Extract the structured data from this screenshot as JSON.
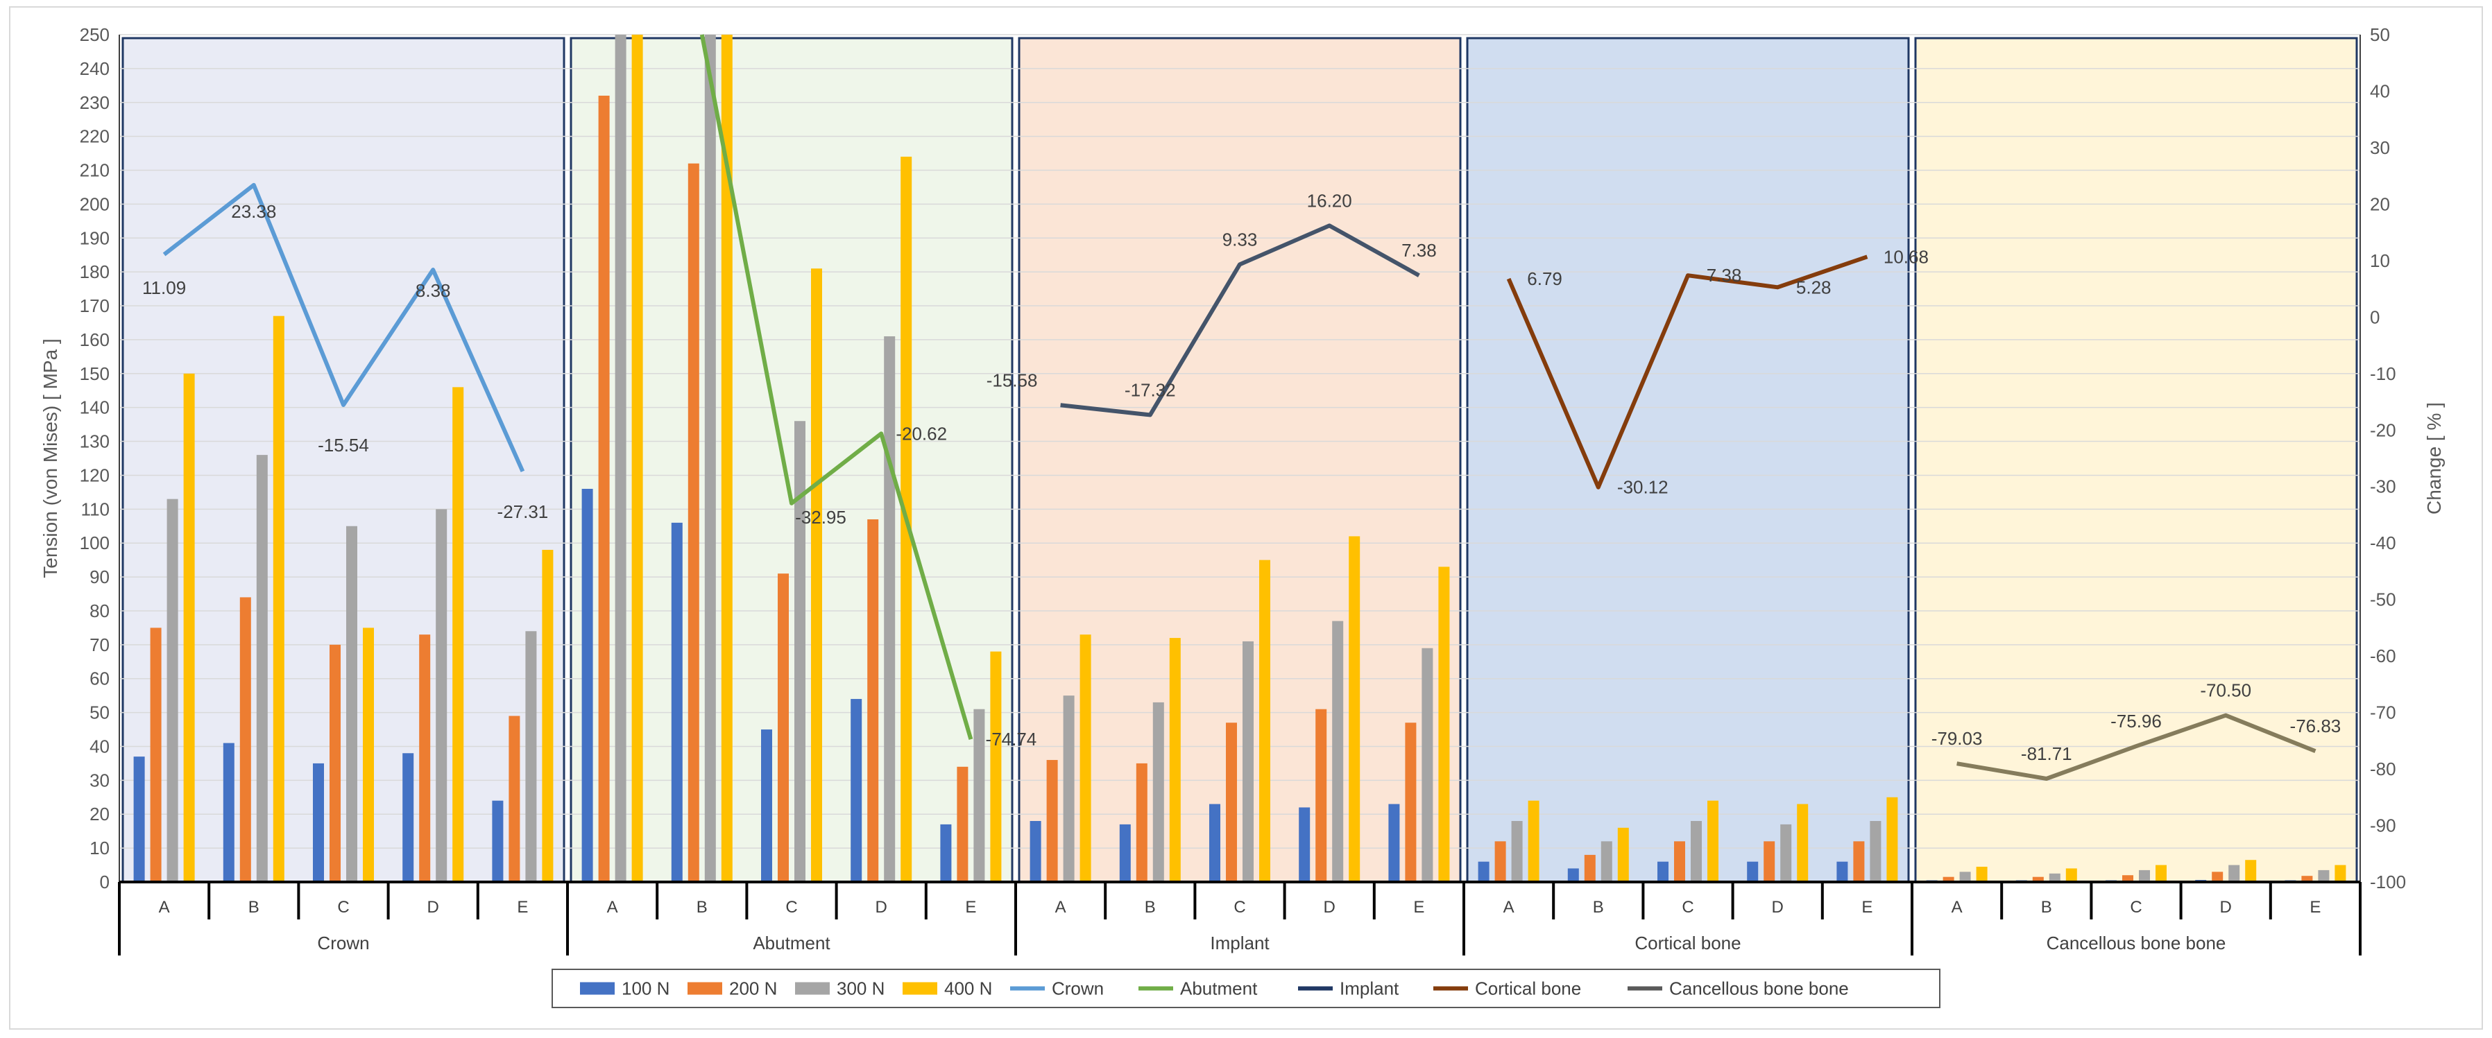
{
  "chart_data": {
    "type": "bar+line",
    "title": "",
    "ylabel": "Tension (von Mises) [ MPa ]",
    "y2label": "Change [ % ]",
    "ylim": [
      0,
      250
    ],
    "yticks": [
      0,
      10,
      20,
      30,
      40,
      50,
      60,
      70,
      80,
      90,
      100,
      110,
      120,
      130,
      140,
      150,
      160,
      170,
      180,
      190,
      200,
      210,
      220,
      230,
      240,
      250
    ],
    "y2lim": [
      -100,
      50
    ],
    "y2ticks": [
      -100,
      -90,
      -80,
      -70,
      -60,
      -50,
      -40,
      -30,
      -20,
      -10,
      0,
      10,
      20,
      30,
      40,
      50
    ],
    "colors": {
      "100N": "#4472C4",
      "200N": "#ED7D31",
      "300N": "#A5A5A5",
      "400N": "#FFC000",
      "Crown": "#5B9BD5",
      "Abutment": "#70AD47",
      "Implant": "#44546A",
      "Cortical bone": "#843C0C",
      "Cancellous bone bone": "#7F7F7F"
    },
    "groups": [
      {
        "name": "Crown",
        "background": "#E9EBF5",
        "categories": [
          "A",
          "B",
          "C",
          "D",
          "E"
        ],
        "bars": {
          "100 N": [
            37,
            41,
            35,
            38,
            24
          ],
          "200 N": [
            75,
            84,
            70,
            73,
            49
          ],
          "300 N": [
            113,
            126,
            105,
            110,
            74
          ],
          "400 N": [
            150,
            167,
            75,
            146,
            98
          ]
        },
        "change": [
          11.09,
          23.38,
          -15.54,
          8.38,
          -27.31
        ],
        "change_labels": [
          "11.09",
          "23.38",
          "-15.54",
          "8.38",
          "-27.31"
        ],
        "line_color": "#5B9BD5"
      },
      {
        "name": "Abutment",
        "background": "#EFF6EA",
        "categories": [
          "A",
          "B",
          "C",
          "D",
          "E"
        ],
        "bars": {
          "100 N": [
            116,
            106,
            45,
            54,
            17
          ],
          "200 N": [
            232,
            212,
            91,
            107,
            34
          ],
          "300 N": [
            250,
            250,
            136,
            161,
            51
          ],
          "400 N": [
            250,
            250,
            181,
            214,
            68
          ]
        },
        "change": [
          null,
          50,
          -32.95,
          -20.62,
          -74.74
        ],
        "change_labels": [
          null,
          null,
          "-32.95",
          "-20.62",
          "-74.74"
        ],
        "line_color": "#70AD47"
      },
      {
        "name": "Implant",
        "background": "#FBE5D6",
        "categories": [
          "A",
          "B",
          "C",
          "D",
          "E"
        ],
        "bars": {
          "100 N": [
            18,
            17,
            23,
            22,
            23
          ],
          "200 N": [
            36,
            35,
            47,
            51,
            47
          ],
          "300 N": [
            55,
            53,
            71,
            77,
            69
          ],
          "400 N": [
            73,
            72,
            95,
            102,
            93
          ]
        },
        "change": [
          -15.58,
          -17.32,
          9.33,
          16.2,
          7.38
        ],
        "change_labels": [
          "-15.58",
          "-17.32",
          "9.33",
          "16.20",
          "7.38"
        ],
        "line_color": "#44546A"
      },
      {
        "name": "Cortical bone",
        "background": "#D0DDF0",
        "categories": [
          "A",
          "B",
          "C",
          "D",
          "E"
        ],
        "bars": {
          "100 N": [
            6,
            4,
            6,
            6,
            6
          ],
          "200 N": [
            12,
            8,
            12,
            12,
            12
          ],
          "300 N": [
            18,
            12,
            18,
            17,
            18
          ],
          "400 N": [
            24,
            16,
            24,
            23,
            25
          ]
        },
        "change": [
          6.79,
          -30.12,
          7.38,
          5.28,
          10.68
        ],
        "change_labels": [
          "6.79",
          "-30.12",
          "7.38",
          "5.28",
          "10.68"
        ],
        "line_color": "#843C0C"
      },
      {
        "name": "Cancellous bone bone",
        "background": "#FFF5D9",
        "categories": [
          "A",
          "B",
          "C",
          "D",
          "E"
        ],
        "bars": {
          "100 N": [
            0.5,
            0.5,
            0.5,
            0.6,
            0.5
          ],
          "200 N": [
            1.5,
            1.5,
            2,
            3,
            1.8
          ],
          "300 N": [
            3,
            2.5,
            3.5,
            5,
            3.5
          ],
          "400 N": [
            4.5,
            4,
            5,
            6.5,
            5
          ]
        },
        "change": [
          -79.03,
          -81.71,
          -75.96,
          -70.5,
          -76.83
        ],
        "change_labels": [
          "-79.03",
          "-81.71",
          "-75.96",
          "-70.50",
          "-76.83"
        ],
        "line_color": "#857C5C"
      }
    ],
    "legend": {
      "position": "bottom",
      "items": [
        {
          "label": "100 N",
          "kind": "bar",
          "color": "#4472C4"
        },
        {
          "label": "200 N",
          "kind": "bar",
          "color": "#ED7D31"
        },
        {
          "label": "300 N",
          "kind": "bar",
          "color": "#A5A5A5"
        },
        {
          "label": "400 N",
          "kind": "bar",
          "color": "#FFC000"
        },
        {
          "label": "Crown",
          "kind": "line",
          "color": "#5B9BD5"
        },
        {
          "label": "Abutment",
          "kind": "line",
          "color": "#70AD47"
        },
        {
          "label": "Implant",
          "kind": "line",
          "color": "#203864"
        },
        {
          "label": "Cortical bone",
          "kind": "line",
          "color": "#843C0C"
        },
        {
          "label": "Cancellous bone bone",
          "kind": "line",
          "color": "#595959"
        }
      ]
    }
  }
}
